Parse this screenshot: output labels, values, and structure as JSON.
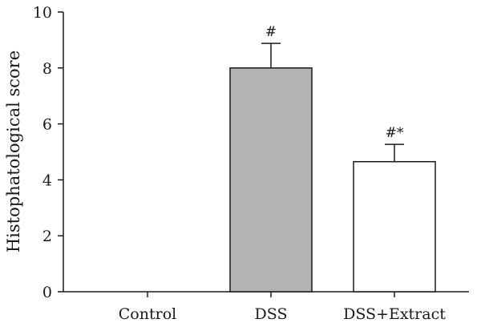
{
  "chart_data": {
    "type": "bar",
    "title": "",
    "xlabel": "",
    "ylabel": "Histophatological score",
    "ylim": [
      0,
      10
    ],
    "yticks": [
      0,
      2,
      4,
      6,
      8,
      10
    ],
    "categories": [
      "Control",
      "DSS",
      "DSS+Extract"
    ],
    "values": [
      0,
      8.0,
      4.65
    ],
    "errors": [
      0,
      0.88,
      0.62
    ],
    "annotations": [
      "",
      "#",
      "#*"
    ],
    "bar_colors": [
      "#ffffff",
      "#b3b3b3",
      "#ffffff"
    ],
    "grid": false,
    "legend": "none"
  }
}
